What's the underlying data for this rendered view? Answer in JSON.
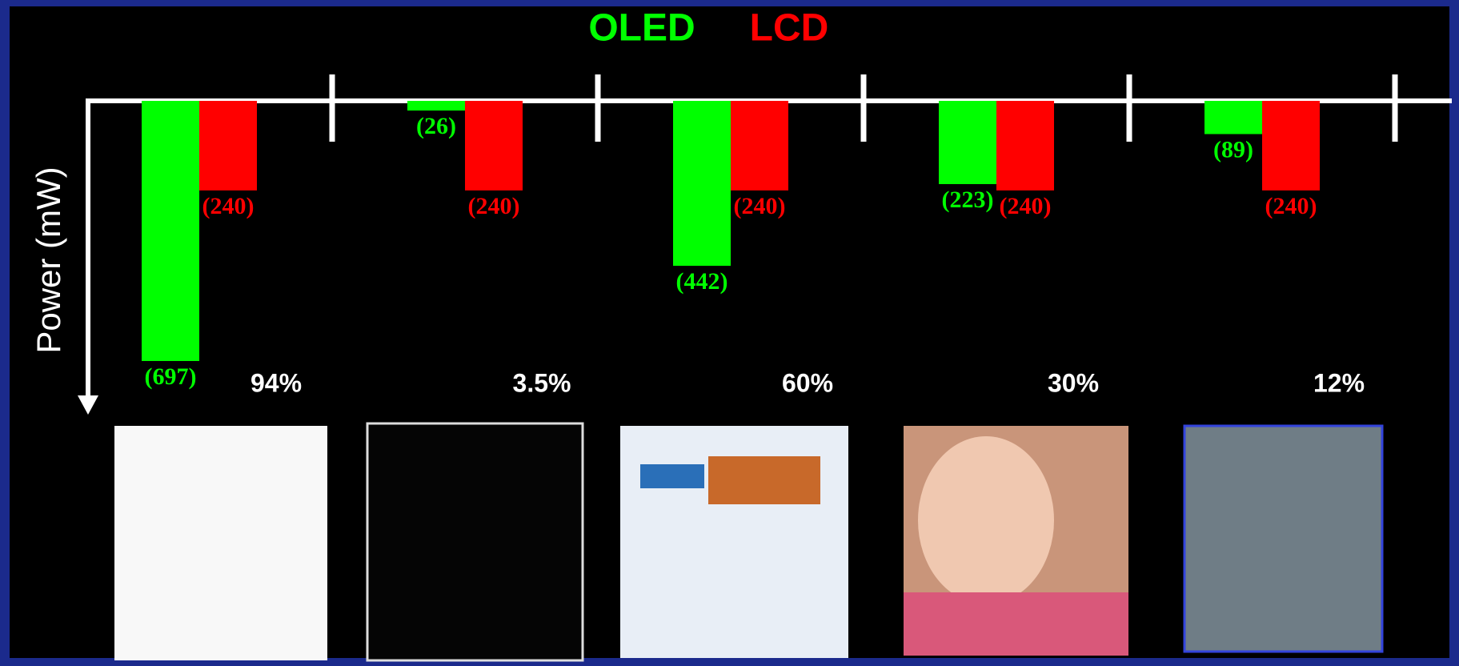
{
  "chart_data": {
    "type": "bar",
    "y_direction": "down",
    "y_label": "Power (mW)",
    "categories": [
      "94%",
      "3.5%",
      "60%",
      "30%",
      "12%"
    ],
    "series": [
      {
        "name": "OLED",
        "color": "#00ff00",
        "values": [
          697,
          26,
          442,
          223,
          89
        ],
        "value_labels": [
          "(697)",
          "(26)",
          "(442)",
          "(223)",
          "(89)"
        ]
      },
      {
        "name": "LCD",
        "color": "#ff0000",
        "values": [
          240,
          240,
          240,
          240,
          240
        ],
        "value_labels": [
          "(240)",
          "(240)",
          "(240)",
          "(240)",
          "(240)"
        ]
      }
    ],
    "ylim": [
      0,
      800
    ]
  }
}
